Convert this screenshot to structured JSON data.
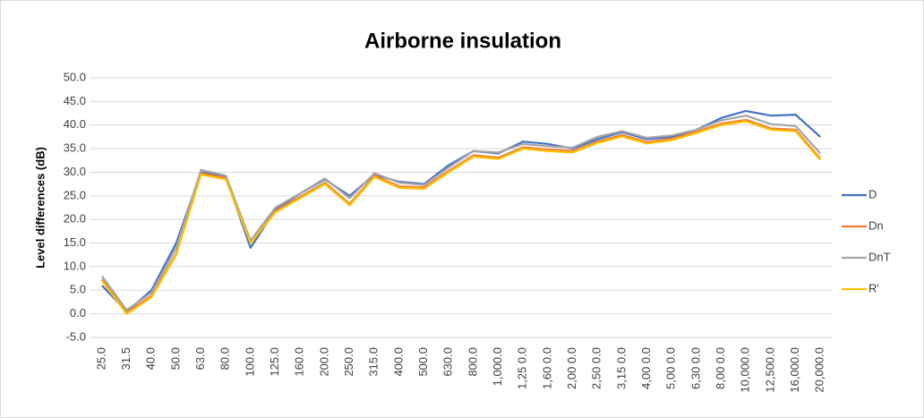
{
  "chart_data": {
    "type": "line",
    "title": "Airborne insulation",
    "y_label": "Level differences (dB)",
    "categories": [
      "25.0",
      "31.5",
      "40.0",
      "50.0",
      "63.0",
      "80.0",
      "100.0",
      "125.0",
      "160.0",
      "200.0",
      "250.0",
      "315.0",
      "400.0",
      "500.0",
      "630.0",
      "800.0",
      "1,000.0",
      "1,25 0.0",
      "1,60 0.0",
      "2,00 0.0",
      "2,50 0.0",
      "3,15 0.0",
      "4,00 0.0",
      "5,00 0.0",
      "6,30 0.0",
      "8,00 0.0",
      "10,000.0",
      "12,500.0",
      "16,000.0",
      "20,000.0"
    ],
    "series": [
      {
        "name": "D",
        "color": "#4472c4",
        "values": [
          6,
          0.5,
          5,
          15,
          30,
          29,
          14,
          22,
          25.5,
          28.5,
          25,
          29.5,
          28,
          27.5,
          31.5,
          34.5,
          34,
          36.5,
          36,
          35,
          37,
          38.5,
          37,
          37.5,
          39,
          41.5,
          43,
          42,
          42.2,
          37.5
        ]
      },
      {
        "name": "Dn",
        "color": "#ed7d31",
        "values": [
          7.3,
          0.3,
          3.8,
          12.8,
          29.8,
          28.8,
          15.3,
          21.8,
          24.8,
          27.8,
          23.3,
          29.3,
          27,
          26.8,
          30.3,
          33.6,
          33.1,
          35.3,
          34.8,
          34.5,
          36.5,
          37.9,
          36.4,
          37.1,
          38.6,
          40.3,
          41.1,
          39.3,
          39,
          32.9
        ]
      },
      {
        "name": "DnT",
        "color": "#a5a5a5",
        "values": [
          8,
          0.8,
          4.5,
          14,
          30.5,
          29.3,
          15.5,
          22.5,
          25.5,
          28.7,
          24.5,
          29.8,
          27.8,
          27.3,
          31,
          34.5,
          34.2,
          36,
          35.5,
          35.2,
          37.5,
          38.7,
          37.3,
          37.8,
          39,
          41,
          42,
          40.2,
          39.8,
          34
        ]
      },
      {
        "name": "R'",
        "color": "#ffc000",
        "values": [
          7,
          0,
          3.5,
          12.5,
          29.5,
          28.5,
          15,
          21.5,
          24.5,
          27.5,
          23,
          29,
          26.7,
          26.5,
          30,
          33.3,
          32.8,
          35,
          34.5,
          34.2,
          36.2,
          37.6,
          36.1,
          36.8,
          38.3,
          40,
          40.8,
          39,
          38.7,
          32.6
        ]
      }
    ],
    "ylim": [
      -5,
      50
    ],
    "yticks": [
      {
        "value": -5,
        "label": "-5.0"
      },
      {
        "value": 0,
        "label": "0.0"
      },
      {
        "value": 5,
        "label": "5.0"
      },
      {
        "value": 10,
        "label": "10.0"
      },
      {
        "value": 15,
        "label": "15.0"
      },
      {
        "value": 20,
        "label": "20.0"
      },
      {
        "value": 25,
        "label": "25.0"
      },
      {
        "value": 30,
        "label": "30.0"
      },
      {
        "value": 35,
        "label": "35.0"
      },
      {
        "value": 40,
        "label": "40.0"
      },
      {
        "value": 45,
        "label": "45.0"
      },
      {
        "value": 50,
        "label": "50.0"
      }
    ],
    "grid": true,
    "legend": "right"
  }
}
